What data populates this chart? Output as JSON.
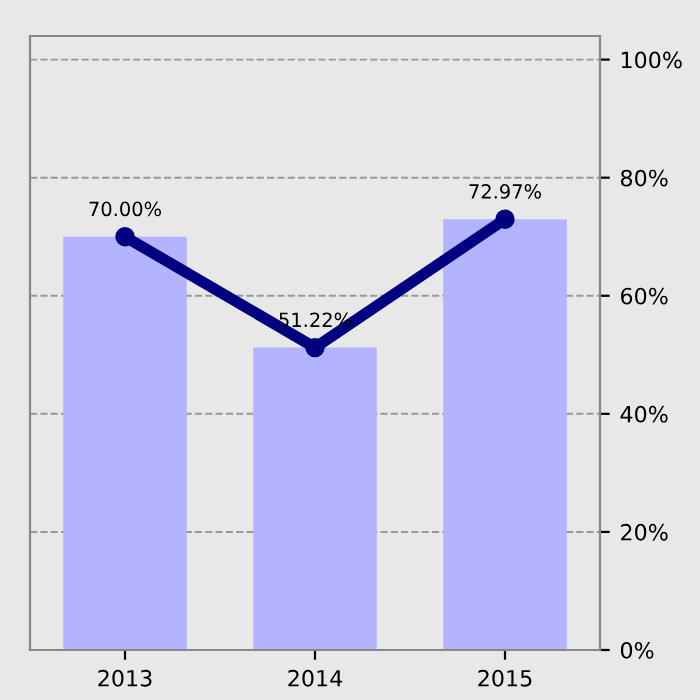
{
  "chart_data": {
    "type": "bar",
    "categories": [
      "2013",
      "2014",
      "2015"
    ],
    "series": [
      {
        "color": "#b3b3ff",
        "values": [
          70.0,
          51.22,
          72.97
        ]
      },
      {
        "type": "line",
        "color": "#000080",
        "values": [
          70.0,
          51.22,
          72.97
        ],
        "value_labels": [
          "70.00%",
          "51.22%",
          "72.97%"
        ],
        "marker": "circle",
        "line_style": "solid"
      }
    ],
    "ylim": [
      0,
      104
    ],
    "yticks": [
      {
        "value": 0,
        "label": "0%"
      },
      {
        "value": 20,
        "label": "20%"
      },
      {
        "value": 40,
        "label": "40%"
      },
      {
        "value": 60,
        "label": "60%"
      },
      {
        "value": 80,
        "label": "80%"
      },
      {
        "value": 100,
        "label": "100%"
      }
    ],
    "grid": "y"
  }
}
